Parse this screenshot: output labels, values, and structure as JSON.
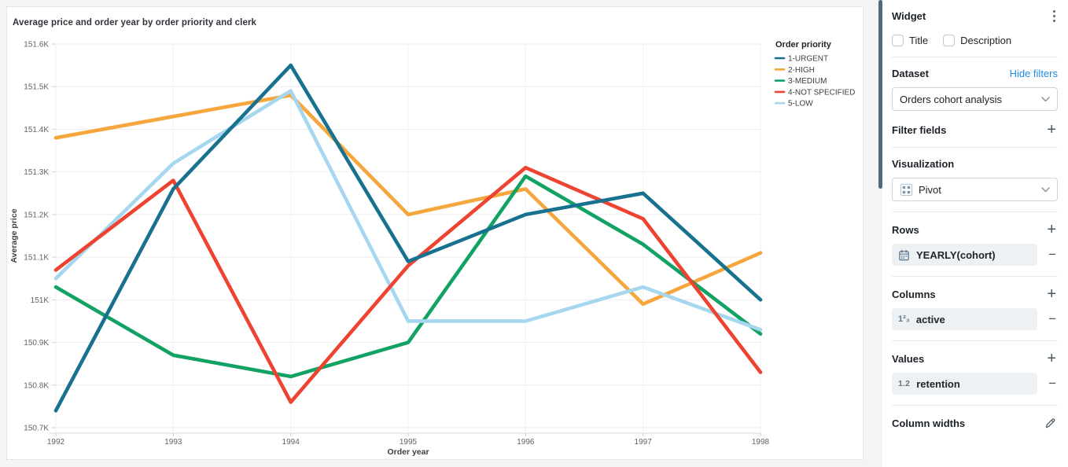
{
  "chart_data": {
    "type": "line",
    "title": "Average price and order year by order priority and clerk",
    "xlabel": "Order year",
    "ylabel": "Average price",
    "x_labels": [
      "1992",
      "1993",
      "1994",
      "1995",
      "1996",
      "1997",
      "1998"
    ],
    "ylim": [
      150700,
      151600
    ],
    "ytick_step": 100,
    "ytick_labels": [
      "150.7K",
      "150.8K",
      "150.9K",
      "151K",
      "151.1K",
      "151.2K",
      "151.3K",
      "151.4K",
      "151.5K",
      "151.6K"
    ],
    "grid": true,
    "legend_title": "Order priority",
    "legend_position": "top-right-outside",
    "series": [
      {
        "name": "1-URGENT",
        "color": "#17718f",
        "values": [
          150740,
          151260,
          151550,
          151090,
          151200,
          151250,
          151000
        ]
      },
      {
        "name": "2-HIGH",
        "color": "#f5a63c",
        "values": [
          151380,
          151430,
          151480,
          151200,
          151260,
          150990,
          151110
        ]
      },
      {
        "name": "3-MEDIUM",
        "color": "#12a264",
        "values": [
          151030,
          150870,
          150820,
          150900,
          151290,
          151130,
          150920
        ]
      },
      {
        "name": "4-NOT SPECIFIED",
        "color": "#ee4331",
        "values": [
          151070,
          151280,
          150760,
          151080,
          151310,
          151190,
          150830
        ]
      },
      {
        "name": "5-LOW",
        "color": "#a6d7ef",
        "values": [
          151050,
          151320,
          151490,
          150950,
          150950,
          151030,
          150930
        ]
      }
    ]
  },
  "sidebar": {
    "title": "Widget",
    "toggles": [
      {
        "label": "Title",
        "checked": false
      },
      {
        "label": "Description",
        "checked": false
      }
    ],
    "dataset": {
      "label": "Dataset",
      "link": "Hide filters",
      "selected": "Orders cohort analysis"
    },
    "filter_fields": {
      "label": "Filter fields"
    },
    "visualization": {
      "label": "Visualization",
      "selected": "Pivot"
    },
    "rows": {
      "label": "Rows",
      "field": "YEARLY(cohort)"
    },
    "columns": {
      "label": "Columns",
      "field": "active",
      "icon_text": "1²₃"
    },
    "values": {
      "label": "Values",
      "field": "retention",
      "icon_text": "1.2"
    },
    "column_widths": {
      "label": "Column widths"
    }
  }
}
